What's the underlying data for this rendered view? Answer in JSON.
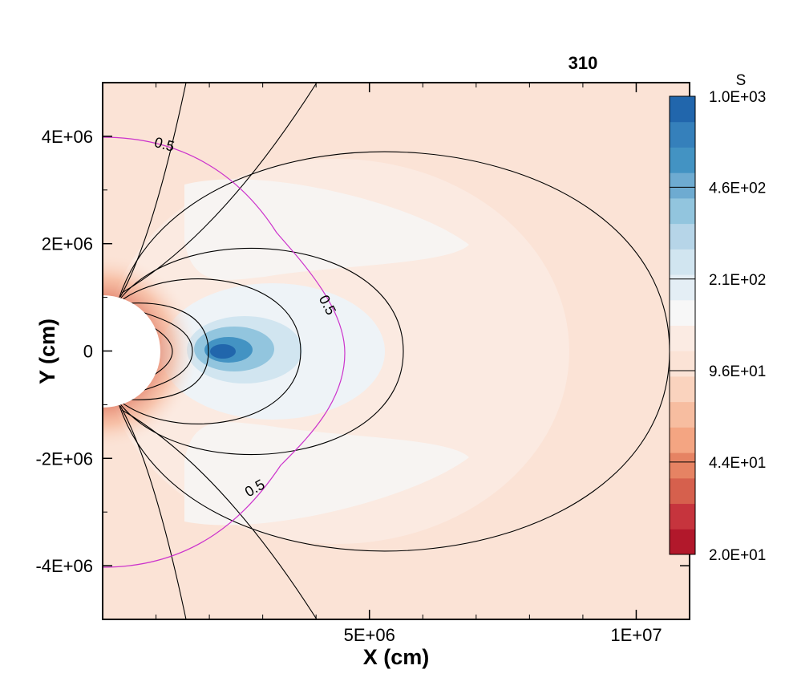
{
  "chart_data": {
    "type": "heatmap",
    "title": "310",
    "xlabel": "X (cm)",
    "ylabel": "Y (cm)",
    "xlim": [
      0,
      11000000
    ],
    "ylim": [
      -5000000,
      5000000
    ],
    "x_ticks": [
      {
        "value": 5000000,
        "label": "5E+06"
      },
      {
        "value": 10000000,
        "label": "1E+07"
      }
    ],
    "y_ticks": [
      {
        "value": 4000000,
        "label": "4E+06"
      },
      {
        "value": 2000000,
        "label": "2E+06"
      },
      {
        "value": 0,
        "label": "0"
      },
      {
        "value": -2000000,
        "label": "-2E+06"
      },
      {
        "value": -4000000,
        "label": "-4E+06"
      }
    ],
    "colorbar": {
      "title": "S",
      "scale": "log",
      "range": [
        20,
        1000
      ],
      "labels": [
        {
          "value": 1000,
          "label": "1.0E+03"
        },
        {
          "value": 460,
          "label": "4.6E+02"
        },
        {
          "value": 210,
          "label": "2.1E+02"
        },
        {
          "value": 96,
          "label": "9.6E+01"
        },
        {
          "value": 44,
          "label": "4.4E+01"
        },
        {
          "value": 20,
          "label": "2.0E+01"
        }
      ],
      "colors": [
        "#b2182b",
        "#c6343d",
        "#d6604d",
        "#e68363",
        "#f4a582",
        "#f7bda0",
        "#fad3be",
        "#fbe3d6",
        "#fbebe3",
        "#f7f7f7",
        "#e4eef5",
        "#d1e5f0",
        "#b6d5e8",
        "#92c5de",
        "#6eabd1",
        "#4393c3",
        "#3580bb",
        "#2166ac"
      ],
      "placement": "right"
    },
    "contour_level_labels": [
      "0.5",
      "0.5",
      "0.5"
    ],
    "colors": {
      "background": "#fbe3d6",
      "inner_boundary": "#ffffff",
      "magenta_contour": "#cc33cc",
      "field_lines": "#000000"
    }
  }
}
